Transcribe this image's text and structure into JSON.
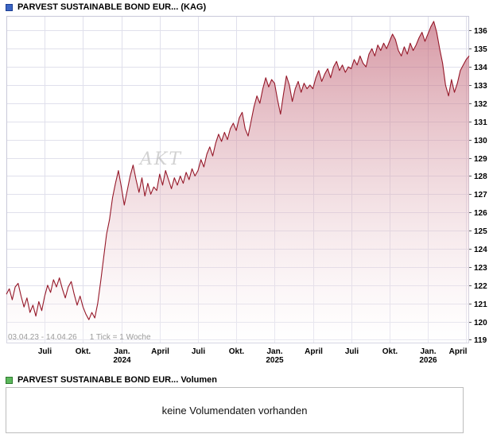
{
  "header": {
    "title": "PARVEST SUSTAINABLE BOND EUR... (KAG)"
  },
  "chart": {
    "period_label": "03.04.23 - 14.04.26",
    "tick_label": "1 Tick = 1 Woche",
    "watermark": "AKT",
    "line_color": "#951728",
    "fill_top": "#bb5468",
    "fill_bottom": "#ffffff",
    "grid_color": "#e0e0ec",
    "border_color": "#c9c9d9",
    "axis_text_color": "#000000",
    "marker_color_blue": "#3c66c4",
    "marker_color_green": "#5cb85c"
  },
  "chart_data": {
    "type": "area",
    "title": "PARVEST SUSTAINABLE BOND EUR... (KAG)",
    "x_unit": "week",
    "start_date": "03.04.23",
    "end_date": "14.04.26",
    "ylim": [
      118.8,
      136.8
    ],
    "y_ticks": [
      136,
      135,
      134,
      133,
      132,
      131,
      130,
      129,
      128,
      127,
      126,
      125,
      124,
      123,
      122,
      121,
      120,
      119
    ],
    "x_ticks": [
      {
        "label": "Juli",
        "week": 13
      },
      {
        "label": "Okt.",
        "week": 26
      },
      {
        "label": "Jan.",
        "week": 39,
        "year": "2024"
      },
      {
        "label": "April",
        "week": 52
      },
      {
        "label": "Juli",
        "week": 65
      },
      {
        "label": "Okt.",
        "week": 78
      },
      {
        "label": "Jan.",
        "week": 91,
        "year": "2025"
      },
      {
        "label": "April",
        "week": 104
      },
      {
        "label": "Juli",
        "week": 117
      },
      {
        "label": "Okt.",
        "week": 130
      },
      {
        "label": "Jan.",
        "week": 143,
        "year": "2026"
      },
      {
        "label": "April",
        "week": 156
      }
    ],
    "values": [
      121.5,
      121.8,
      121.2,
      121.9,
      122.1,
      121.4,
      120.8,
      121.3,
      120.5,
      120.9,
      120.3,
      121.1,
      120.6,
      121.4,
      122.0,
      121.6,
      122.3,
      121.9,
      122.4,
      121.8,
      121.3,
      121.9,
      122.2,
      121.5,
      120.9,
      121.4,
      120.8,
      120.4,
      120.1,
      120.5,
      120.2,
      121.0,
      122.2,
      123.5,
      124.8,
      125.6,
      126.8,
      127.6,
      128.3,
      127.4,
      126.4,
      127.2,
      128.0,
      128.6,
      127.8,
      127.1,
      127.9,
      126.9,
      127.6,
      127.0,
      127.4,
      127.2,
      128.1,
      127.5,
      128.3,
      127.8,
      127.3,
      127.9,
      127.5,
      128.0,
      127.6,
      128.2,
      127.8,
      128.4,
      128.0,
      128.3,
      128.9,
      128.5,
      129.2,
      129.6,
      129.1,
      129.8,
      130.3,
      129.9,
      130.4,
      130.0,
      130.6,
      130.9,
      130.5,
      131.2,
      131.5,
      130.6,
      130.2,
      131.0,
      131.8,
      132.4,
      132.0,
      132.8,
      133.4,
      132.9,
      133.3,
      133.1,
      132.2,
      131.4,
      132.5,
      133.5,
      133.0,
      132.1,
      132.8,
      133.2,
      132.6,
      133.1,
      132.8,
      133.0,
      132.8,
      133.4,
      133.8,
      133.2,
      133.6,
      133.9,
      133.4,
      134.0,
      134.3,
      133.8,
      134.1,
      133.7,
      134.0,
      133.9,
      134.4,
      134.1,
      134.6,
      134.2,
      134.0,
      134.7,
      135.0,
      134.6,
      135.2,
      134.9,
      135.3,
      135.0,
      135.4,
      135.8,
      135.5,
      134.9,
      134.6,
      135.1,
      134.7,
      135.3,
      134.9,
      135.2,
      135.6,
      135.9,
      135.4,
      135.8,
      136.2,
      136.5,
      135.9,
      135.0,
      134.2,
      133.0,
      132.4,
      133.3,
      132.6,
      133.1,
      133.8,
      134.1,
      134.4,
      134.6
    ]
  },
  "volume": {
    "title": "PARVEST SUSTAINABLE BOND EUR... Volumen",
    "no_data_text": "keine Volumendaten vorhanden"
  }
}
